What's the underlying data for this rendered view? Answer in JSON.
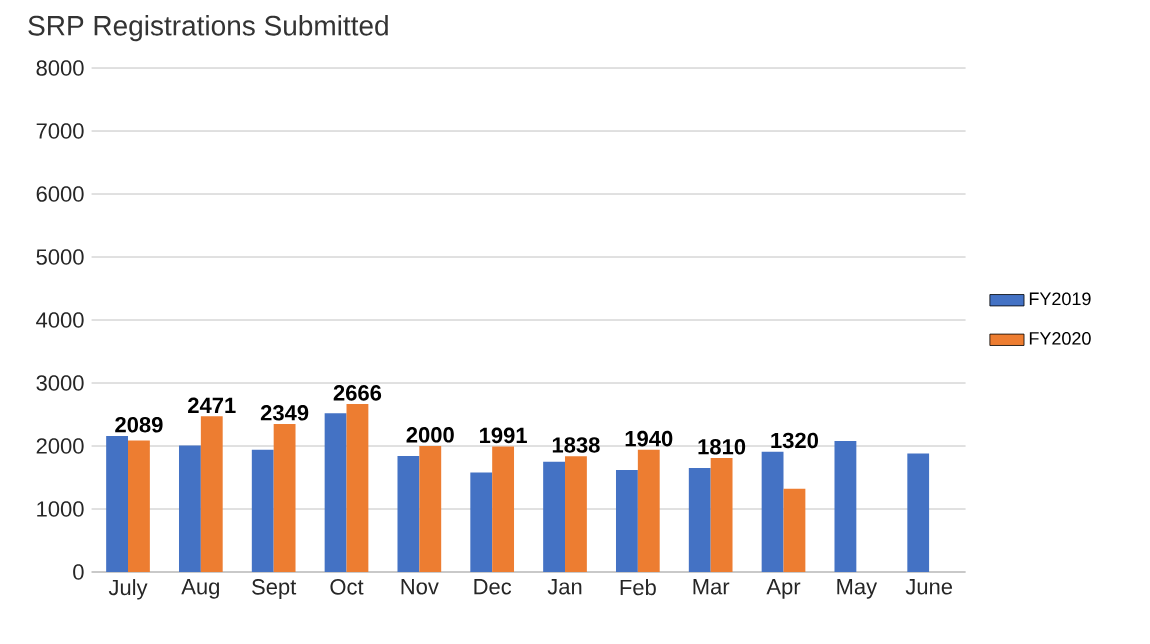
{
  "chart_data": {
    "type": "bar",
    "title": "SRP Registrations Submitted",
    "categories": [
      "July",
      "Aug",
      "Sept",
      "Oct",
      "Nov",
      "Dec",
      "Jan",
      "Feb",
      "Mar",
      "Apr",
      "May",
      "June"
    ],
    "series": [
      {
        "name": "FY2019",
        "color": "#4472c4",
        "values": [
          2160,
          2010,
          1940,
          2520,
          1840,
          1580,
          1750,
          1620,
          1650,
          1910,
          2080,
          1880
        ]
      },
      {
        "name": "FY2020",
        "color": "#ed7d31",
        "values": [
          2089,
          2471,
          2349,
          2666,
          2000,
          1991,
          1838,
          1940,
          1810,
          1320,
          null,
          null
        ],
        "value_labels": [
          "2089",
          "2471",
          "2349",
          "2666",
          "2000",
          "1991",
          "1838",
          "1940",
          "1810",
          "1320",
          null,
          null
        ]
      }
    ],
    "ylim": [
      0,
      8000
    ],
    "yticks": [
      0,
      1000,
      2000,
      3000,
      4000,
      5000,
      6000,
      7000,
      8000
    ],
    "grid": "y",
    "legend": "right"
  }
}
